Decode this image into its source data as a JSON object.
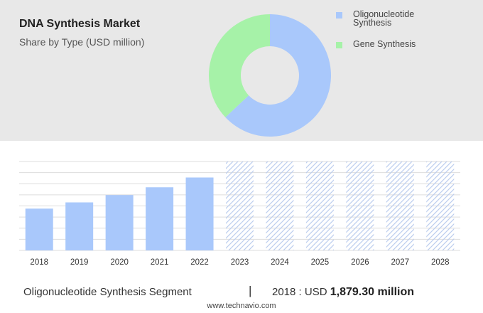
{
  "header": {
    "title": "DNA Synthesis Market",
    "subtitle": "Share by Type (USD million)"
  },
  "colors": {
    "oligonucleotide": "#a9c8fb",
    "gene": "#a6f2a8",
    "forecast_hatch": "#bccdee",
    "panel_bg": "#e8e8e8"
  },
  "chart_data": [
    {
      "type": "pie",
      "donut": true,
      "categories": [
        "Oligonucleotide Synthesis",
        "Gene Synthesis"
      ],
      "values": [
        63,
        37
      ],
      "legend_position": "right"
    },
    {
      "type": "bar",
      "categories": [
        "2018",
        "2019",
        "2020",
        "2021",
        "2022",
        "2023",
        "2024",
        "2025",
        "2026",
        "2027",
        "2028"
      ],
      "values": [
        1879.3,
        2160,
        2490,
        2840,
        3280,
        null,
        null,
        null,
        null,
        null,
        null
      ],
      "forecast_categories": [
        "2023",
        "2024",
        "2025",
        "2026",
        "2027",
        "2028"
      ],
      "ylim": [
        0,
        4000
      ],
      "grid": true,
      "xlabel": "",
      "ylabel": ""
    }
  ],
  "footer": {
    "segment": "Oligonucleotide Synthesis Segment",
    "separator": "|",
    "year_prefix": "2018 : USD",
    "value": "1,879.30 million",
    "source": "www.technavio.com"
  }
}
